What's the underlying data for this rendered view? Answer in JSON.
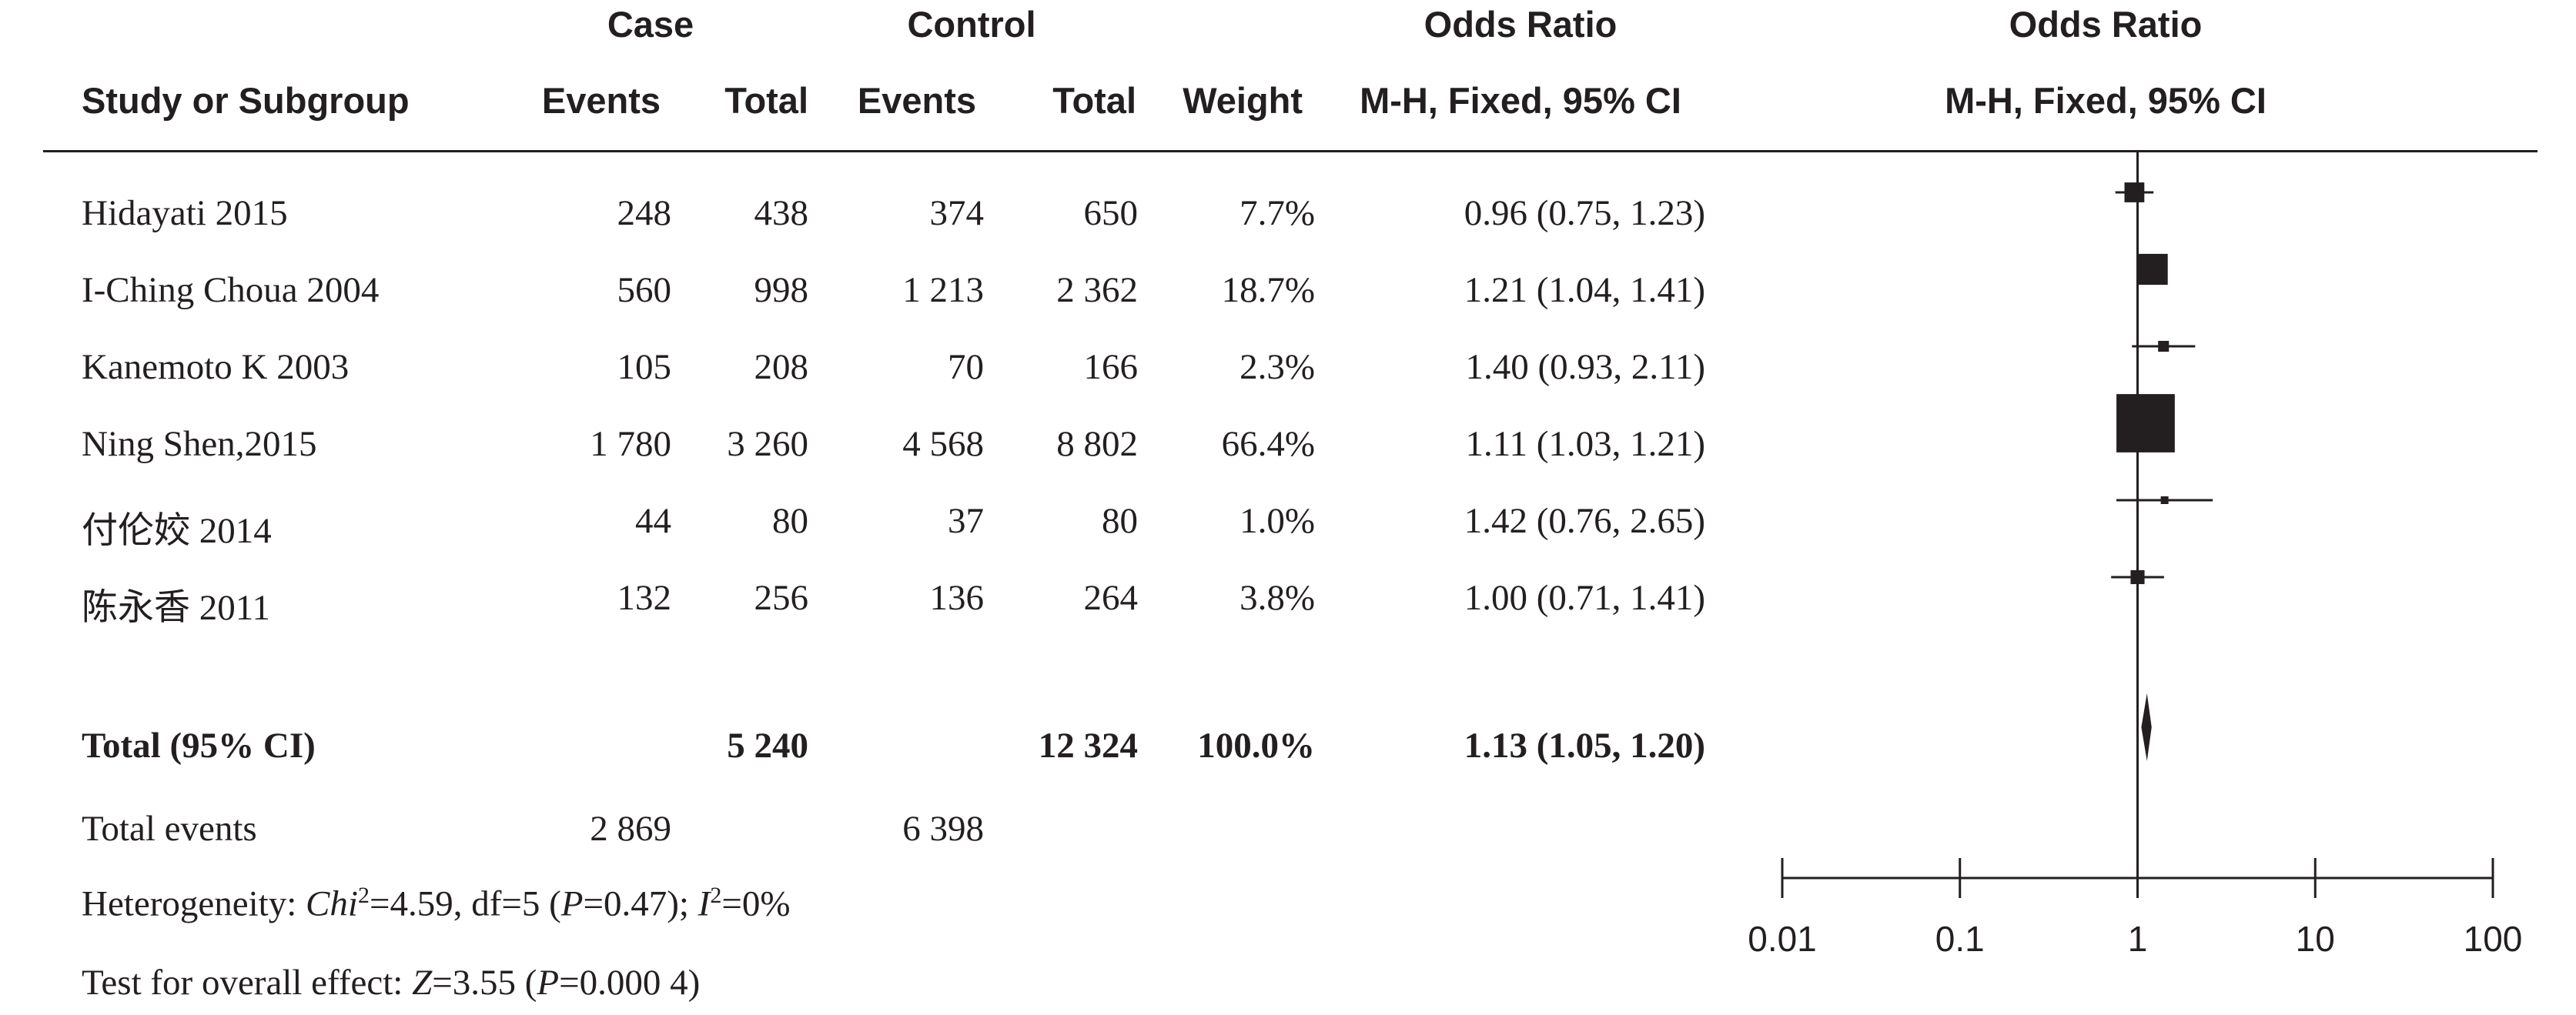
{
  "header": {
    "case_group": "Case",
    "control_group": "Control",
    "or_title_table": "Odds Ratio",
    "or_title_plot": "Odds Ratio",
    "study_col": "Study or Subgroup",
    "case_events": "Events",
    "case_total": "Total",
    "control_events": "Events",
    "control_total": "Total",
    "weight": "Weight",
    "or_method_table": "M-H, Fixed, 95% CI",
    "or_method_plot": "M-H, Fixed, 95% CI"
  },
  "studies": [
    {
      "name": "Hidayati 2015",
      "case_events": "248",
      "case_total": "438",
      "control_events": "374",
      "control_total": "650",
      "weight": "7.7%",
      "ci_text": "0.96 (0.75, 1.23)"
    },
    {
      "name": "I-Ching Choua 2004",
      "case_events": "560",
      "case_total": "998",
      "control_events": "1 213",
      "control_total": "2 362",
      "weight": "18.7%",
      "ci_text": "1.21 (1.04, 1.41)"
    },
    {
      "name": "Kanemoto K 2003",
      "case_events": "105",
      "case_total": "208",
      "control_events": "70",
      "control_total": "166",
      "weight": "2.3%",
      "ci_text": "1.40 (0.93, 2.11)"
    },
    {
      "name": "Ning Shen,2015",
      "case_events": "1 780",
      "case_total": "3 260",
      "control_events": "4 568",
      "control_total": "8 802",
      "weight": "66.4%",
      "ci_text": "1.11 (1.03, 1.21)"
    },
    {
      "name": "付伦姣 2014",
      "case_events": "44",
      "case_total": "80",
      "control_events": "37",
      "control_total": "80",
      "weight": "1.0%",
      "ci_text": "1.42 (0.76, 2.65)"
    },
    {
      "name": "陈永香 2011",
      "case_events": "132",
      "case_total": "256",
      "control_events": "136",
      "control_total": "264",
      "weight": "3.8%",
      "ci_text": "1.00 (0.71, 1.41)"
    }
  ],
  "total": {
    "label": "Total (95% CI)",
    "case_total": "5 240",
    "control_total": "12 324",
    "weight": "100.0%",
    "ci_text": "1.13 (1.05, 1.20)"
  },
  "total_events": {
    "label": "Total events",
    "case": "2 869",
    "control": "6 398"
  },
  "heterogeneity": {
    "prefix": "Heterogeneity: ",
    "chi_label": "Chi",
    "chi_value": "=4.59, df=5 (",
    "p_label": "P",
    "p_value": "=0.47); ",
    "i_label": "I",
    "i_value": "=0%",
    "superscript": "2"
  },
  "overall_effect": {
    "prefix": "Test for overall effect: ",
    "z_label": "Z",
    "z_value": "=3.55 (",
    "p_label": "P",
    "p_value": "=0.000 4)"
  },
  "chart_data": {
    "type": "forest",
    "scale": "log",
    "xlim": [
      0.01,
      100
    ],
    "reference_line": 1,
    "x_tick_labels": [
      "0.01",
      "0.1",
      "1",
      "10",
      "100"
    ],
    "x_tick_values": [
      0.01,
      0.1,
      1,
      10,
      100
    ],
    "studies": [
      {
        "name": "Hidayati 2015",
        "or": 0.96,
        "lower": 0.75,
        "upper": 1.23,
        "weight": 7.7
      },
      {
        "name": "I-Ching Choua 2004",
        "or": 1.21,
        "lower": 1.04,
        "upper": 1.41,
        "weight": 18.7
      },
      {
        "name": "Kanemoto K 2003",
        "or": 1.4,
        "lower": 0.93,
        "upper": 2.11,
        "weight": 2.3
      },
      {
        "name": "Ning Shen,2015",
        "or": 1.11,
        "lower": 1.03,
        "upper": 1.21,
        "weight": 66.4
      },
      {
        "name": "付伦姣 2014",
        "or": 1.42,
        "lower": 0.76,
        "upper": 2.65,
        "weight": 1.0
      },
      {
        "name": "陈永香 2011",
        "or": 1.0,
        "lower": 0.71,
        "upper": 1.41,
        "weight": 3.8
      }
    ],
    "pooled": {
      "or": 1.13,
      "lower": 1.05,
      "upper": 1.2
    },
    "marker_color": "#231f20"
  }
}
